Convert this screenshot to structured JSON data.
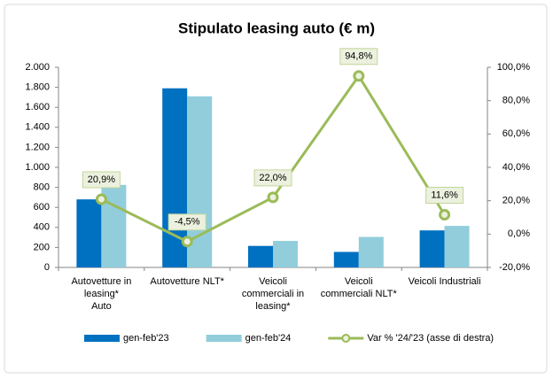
{
  "chart_data": {
    "type": "bar-line",
    "title": "Stipulato leasing auto (€ m)",
    "categories": [
      "Autovetture in\nleasing*\nAuto",
      "Autovetture NLT*",
      "Veicoli\ncommerciali in\nleasing*",
      "Veicoli\ncommerciali NLT*",
      "Veicoli Industriali"
    ],
    "series": [
      {
        "name": "gen-feb'23",
        "type": "bar",
        "color": "#0070c0",
        "values": [
          680,
          1790,
          215,
          155,
          370
        ]
      },
      {
        "name": "gen-feb'24",
        "type": "bar",
        "color": "#92cddc",
        "values": [
          825,
          1710,
          265,
          305,
          415
        ]
      },
      {
        "name": "Var % '24/'23 (asse di destra)",
        "type": "line",
        "axis": "y2",
        "color": "#9bbb59",
        "values": [
          20.9,
          -4.5,
          22.0,
          94.8,
          11.6
        ],
        "value_labels": [
          "20,9%",
          "-4,5%",
          "22,0%",
          "94,8%",
          "11,6%"
        ]
      }
    ],
    "ylim": [
      0,
      2000
    ],
    "yticks": [
      0,
      200,
      400,
      600,
      800,
      {
        "value": 1000,
        "label": "1.000"
      },
      {
        "value": 1200,
        "label": "1.200"
      },
      {
        "value": 1400,
        "label": "1.400"
      },
      {
        "value": 1600,
        "label": "1.600"
      },
      {
        "value": 1800,
        "label": "1.800"
      },
      {
        "value": 2000,
        "label": "2.000"
      }
    ],
    "y2lim": [
      -20,
      100
    ],
    "y2ticks": [
      {
        "value": -20,
        "label": "-20,0%"
      },
      {
        "value": 0,
        "label": "0,0%"
      },
      {
        "value": 20,
        "label": "20,0%"
      },
      {
        "value": 40,
        "label": "40,0%"
      },
      {
        "value": 60,
        "label": "60,0%"
      },
      {
        "value": 80,
        "label": "80,0%"
      },
      {
        "value": 100,
        "label": "100,0%"
      }
    ],
    "legend": "bottom"
  }
}
